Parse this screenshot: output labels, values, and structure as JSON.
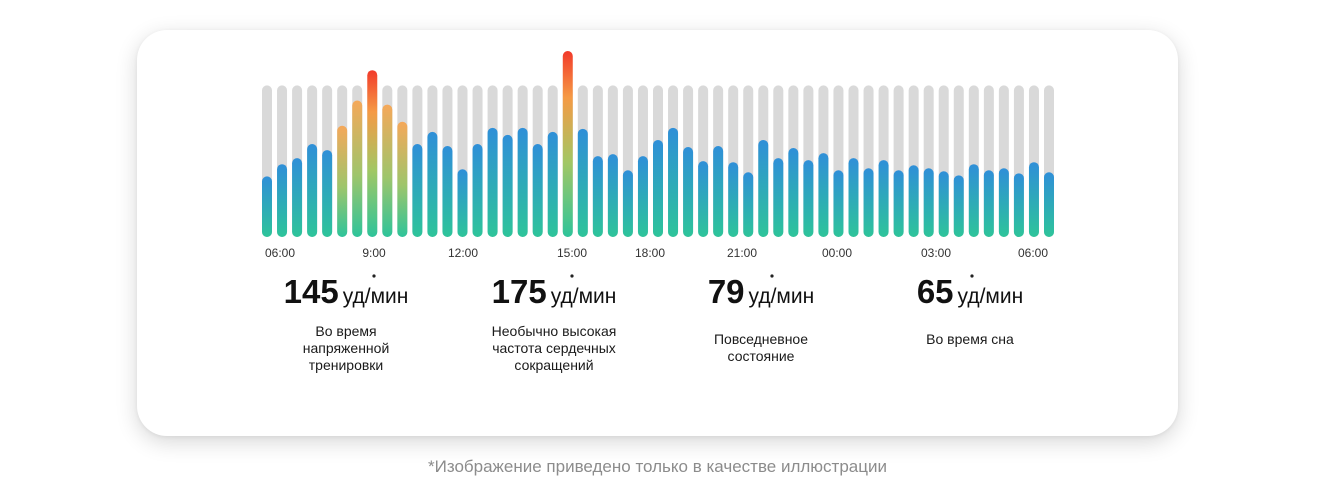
{
  "chart_data": {
    "type": "bar",
    "xlabel": "",
    "ylabel": "",
    "tick_labels": [
      "06:00",
      "9:00",
      "12:00",
      "15:00",
      "18:00",
      "21:00",
      "00:00",
      "03:00",
      "06:00"
    ],
    "values": [
      60,
      72,
      78,
      92,
      86,
      110,
      135,
      165,
      131,
      114,
      92,
      104,
      90,
      67,
      92,
      108,
      101,
      108,
      92,
      104,
      184,
      107,
      80,
      82,
      66,
      80,
      96,
      108,
      89,
      75,
      90,
      74,
      64,
      96,
      78,
      88,
      76,
      83,
      66,
      78,
      68,
      76,
      66,
      71,
      68,
      65,
      61,
      72,
      66,
      68,
      63,
      74,
      64
    ],
    "max_value": 184,
    "track_value": 150,
    "colors": {
      "track": "#d9d9d9",
      "normal_top": "#2f8fd8",
      "normal_bottom": "#2ec49a",
      "elevated_top": "#f5a85a",
      "peak_top": "#f23a2a"
    }
  },
  "stats": [
    {
      "value": "145",
      "unit": "уд/мин",
      "description": "Во время напряженной тренировки"
    },
    {
      "value": "175",
      "unit": "уд/мин",
      "description": "Необычно высокая частота сердечных сокращений"
    },
    {
      "value": "79",
      "unit": "уд/мин",
      "description": "Повседневное состояние"
    },
    {
      "value": "65",
      "unit": "уд/мин",
      "description": "Во время сна"
    }
  ],
  "caption": "*Изображение приведено только в качестве иллюстрации"
}
